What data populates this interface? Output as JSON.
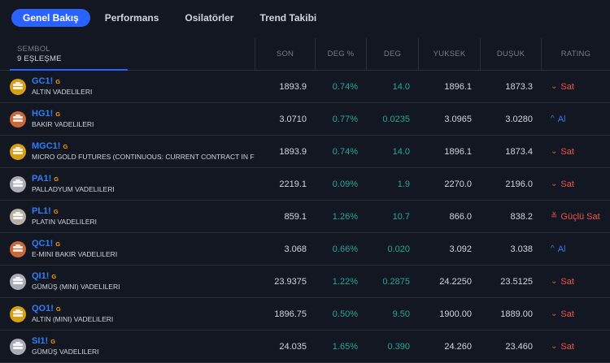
{
  "tabs": [
    {
      "label": "Genel Bakış",
      "active": true
    },
    {
      "label": "Performans",
      "active": false
    },
    {
      "label": "Osilatörler",
      "active": false
    },
    {
      "label": "Trend Takibi",
      "active": false
    }
  ],
  "header": {
    "symbol_label": "SEMBOL",
    "symbol_count": "9 EŞLEŞME",
    "columns": [
      "SON",
      "DEG %",
      "DEG",
      "YUKSEK",
      "DUŞUK",
      "RATING"
    ]
  },
  "colors": {
    "accent": "#2962ff",
    "positive": "#26a69a",
    "sell": "#ef5350",
    "buy": "#2f7df6",
    "badge": "#ff9800"
  },
  "rows": [
    {
      "ticker": "GC1!",
      "badge": "G",
      "desc": "ALTIN VADELILERI",
      "icon": "gold-bar-icon",
      "icon_color": "#d4a017",
      "last": "1893.9",
      "chg_pct": "0.74%",
      "chg": "14.0",
      "high": "1896.1",
      "low": "1873.3",
      "rating": "Sat",
      "rating_type": "sell",
      "rating_icon": "chevron-down-icon",
      "rating_arrow": "⌄"
    },
    {
      "ticker": "HG1!",
      "badge": "G",
      "desc": "BAKIR VADELILERI",
      "icon": "copper-bar-icon",
      "icon_color": "#c8693c",
      "last": "3.0710",
      "chg_pct": "0.77%",
      "chg": "0.0235",
      "high": "3.0965",
      "low": "3.0280",
      "rating": "Al",
      "rating_type": "buy",
      "rating_icon": "chevron-up-icon",
      "rating_arrow": "^"
    },
    {
      "ticker": "MGC1!",
      "badge": "G",
      "desc": "MICRO GOLD FUTURES (CONTINUOUS: CURRENT CONTRACT IN F",
      "icon": "gold-bar-icon",
      "icon_color": "#d4a017",
      "last": "1893.9",
      "chg_pct": "0.74%",
      "chg": "14.0",
      "high": "1896.1",
      "low": "1873.4",
      "rating": "Sat",
      "rating_type": "sell",
      "rating_icon": "chevron-down-icon",
      "rating_arrow": "⌄"
    },
    {
      "ticker": "PA1!",
      "badge": "G",
      "desc": "PALLADYUM VADELILERI",
      "icon": "palladium-bar-icon",
      "icon_color": "#a9acb3",
      "last": "2219.1",
      "chg_pct": "0.09%",
      "chg": "1.9",
      "high": "2270.0",
      "low": "2196.0",
      "rating": "Sat",
      "rating_type": "sell",
      "rating_icon": "chevron-down-icon",
      "rating_arrow": "⌄"
    },
    {
      "ticker": "PL1!",
      "badge": "G",
      "desc": "PLATIN VADELILERI",
      "icon": "platinum-bar-icon",
      "icon_color": "#b9b0a6",
      "last": "859.1",
      "chg_pct": "1.26%",
      "chg": "10.7",
      "high": "866.0",
      "low": "838.2",
      "rating": "Güçlü Sat",
      "rating_type": "sell",
      "rating_icon": "double-chevron-down-icon",
      "rating_arrow": "≚"
    },
    {
      "ticker": "QC1!",
      "badge": "G",
      "desc": "E-MINI BAKIR VADELILERI",
      "icon": "copper-bar-icon",
      "icon_color": "#c8693c",
      "last": "3.068",
      "chg_pct": "0.66%",
      "chg": "0.020",
      "high": "3.092",
      "low": "3.038",
      "rating": "Al",
      "rating_type": "buy",
      "rating_icon": "chevron-up-icon",
      "rating_arrow": "^"
    },
    {
      "ticker": "QI1!",
      "badge": "G",
      "desc": "GÜMÜŞ (MINI) VADELILERI",
      "icon": "silver-bar-icon",
      "icon_color": "#a9acb3",
      "last": "23.9375",
      "chg_pct": "1.22%",
      "chg": "0.2875",
      "high": "24.2250",
      "low": "23.5125",
      "rating": "Sat",
      "rating_type": "sell",
      "rating_icon": "chevron-down-icon",
      "rating_arrow": "⌄"
    },
    {
      "ticker": "QO1!",
      "badge": "G",
      "desc": "ALTIN (MINI) VADELILERI",
      "icon": "gold-bar-icon",
      "icon_color": "#d4a017",
      "last": "1896.75",
      "chg_pct": "0.50%",
      "chg": "9.50",
      "high": "1900.00",
      "low": "1889.00",
      "rating": "Sat",
      "rating_type": "sell",
      "rating_icon": "chevron-down-icon",
      "rating_arrow": "⌄"
    },
    {
      "ticker": "SI1!",
      "badge": "G",
      "desc": "GÜMÜŞ VADELILERI",
      "icon": "silver-bar-icon",
      "icon_color": "#a9acb3",
      "last": "24.035",
      "chg_pct": "1.65%",
      "chg": "0.390",
      "high": "24.260",
      "low": "23.460",
      "rating": "Sat",
      "rating_type": "sell",
      "rating_icon": "chevron-down-icon",
      "rating_arrow": "⌄"
    }
  ]
}
